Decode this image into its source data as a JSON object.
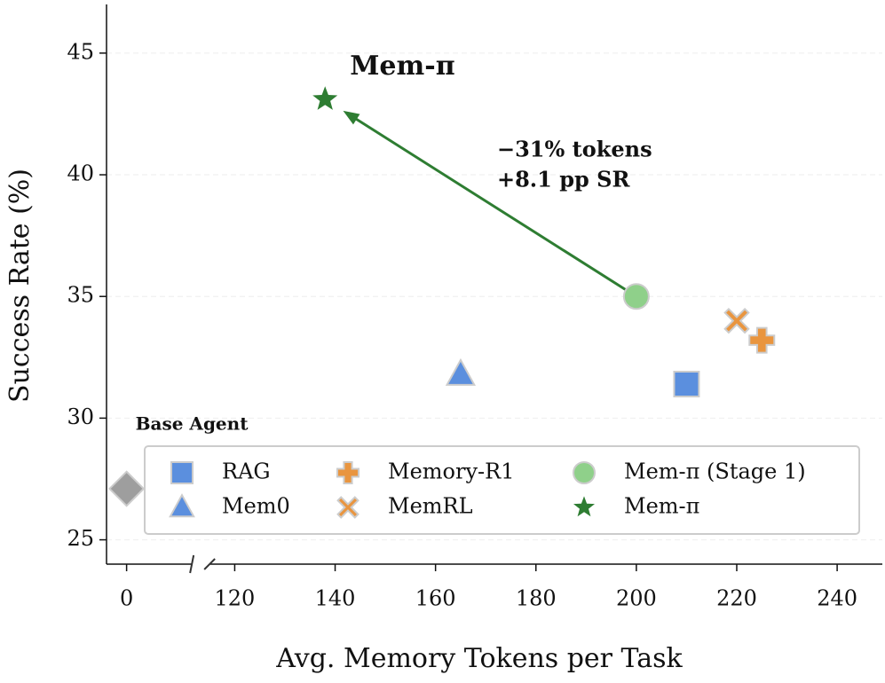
{
  "chart_data": {
    "type": "scatter",
    "xlabel": "Avg. Memory Tokens per Task",
    "ylabel": "Success Rate (%)",
    "xsegments": [
      {
        "xlim": [
          -4,
          13
        ],
        "xticks": [
          0
        ]
      },
      {
        "xlim": [
          115,
          249
        ],
        "xticks": [
          120,
          140,
          160,
          180,
          200,
          220,
          240
        ]
      }
    ],
    "ylim": [
      24,
      47
    ],
    "yticks": [
      25,
      30,
      35,
      40,
      45
    ],
    "grid": true,
    "baseline": {
      "name": "Base Agent",
      "x": 0,
      "y": 27.1,
      "color": "#9e9e9e",
      "marker": "diamond"
    },
    "series": [
      {
        "name": "RAG",
        "color": "#5b8fde",
        "marker": "square",
        "x": [
          210
        ],
        "y": [
          31.4
        ]
      },
      {
        "name": "Mem0",
        "color": "#5b8fde",
        "marker": "triangle",
        "x": [
          165
        ],
        "y": [
          31.8
        ]
      },
      {
        "name": "Memory-R1",
        "color": "#e9953f",
        "marker": "plus",
        "x": [
          225
        ],
        "y": [
          33.2
        ]
      },
      {
        "name": "MemRL",
        "color": "#e9953f",
        "marker": "x",
        "x": [
          220
        ],
        "y": [
          34.0
        ]
      },
      {
        "name": "Mem-π (Stage 1)",
        "color": "#8fd08a",
        "marker": "circle",
        "x": [
          200
        ],
        "y": [
          35.0
        ]
      },
      {
        "name": "Mem-π",
        "color": "#2e7d32",
        "marker": "star",
        "x": [
          138
        ],
        "y": [
          43.1
        ]
      }
    ],
    "annotations": {
      "label": "Mem-π",
      "delta_tokens": "−31% tokens",
      "delta_sr": "+8.1 pp SR",
      "color": "#2e7d32"
    },
    "legend": {
      "location": "lower right",
      "ncol": 3
    }
  }
}
